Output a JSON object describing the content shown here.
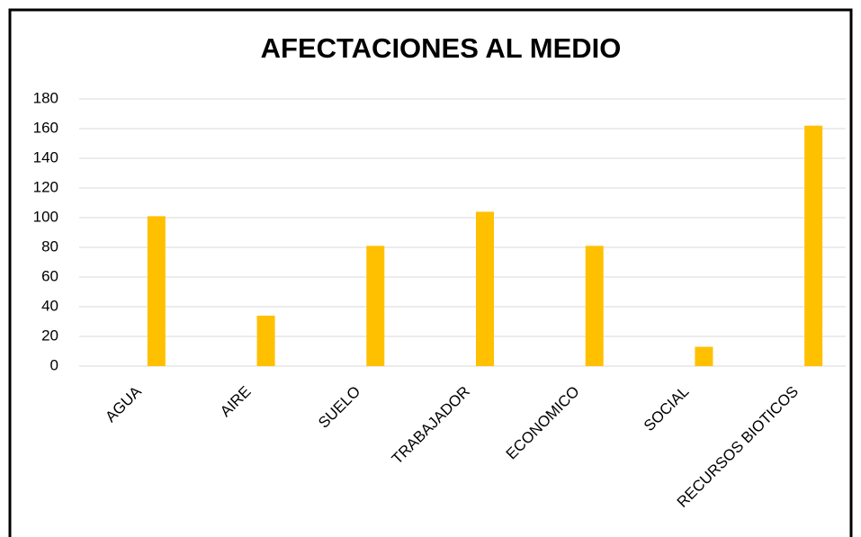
{
  "chart_data": {
    "type": "bar",
    "title": "AFECTACIONES AL MEDIO",
    "categories": [
      "AGUA",
      "AIRE",
      "SUELO",
      "TRABAJADOR",
      "ECONOMICO",
      "SOCIAL",
      "RECURSOS BIOTICOS"
    ],
    "values": [
      101,
      34,
      81,
      104,
      81,
      13,
      162
    ],
    "color": "#ffc000",
    "ylim": [
      0,
      180
    ],
    "yticks": [
      0,
      20,
      40,
      60,
      80,
      100,
      120,
      140,
      160,
      180
    ],
    "grid": true
  }
}
